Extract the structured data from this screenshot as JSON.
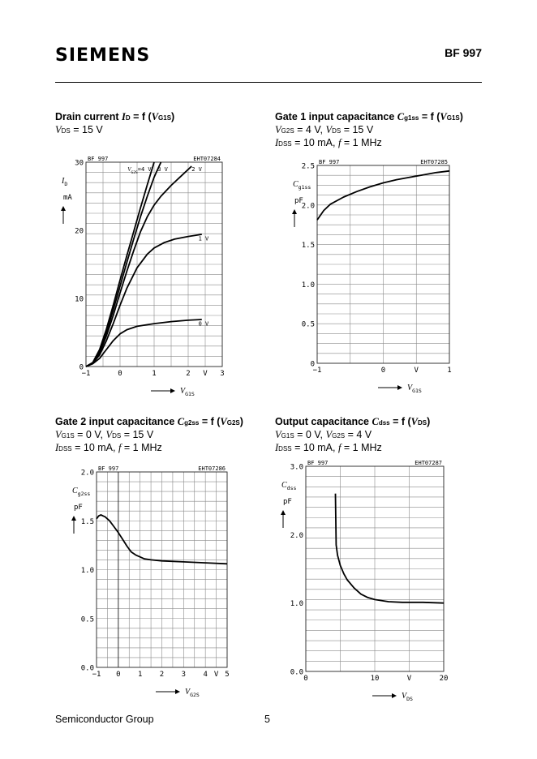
{
  "header": {
    "brand": "SIEMENS",
    "part_number": "BF 997"
  },
  "footer": {
    "left": "Semiconductor Group",
    "page": "5"
  },
  "chart_data": [
    {
      "type": "line",
      "caption": {
        "title": "Drain current",
        "sym": "I",
        "sym_sub": "D",
        "eq": " = f (",
        "arg": "V",
        "arg_sub": "G1S",
        "close": ")"
      },
      "conditions": [
        [
          {
            "v": "V",
            "s": "DS"
          },
          " = 15 V"
        ]
      ],
      "tag_left": "BF 997",
      "tag_right": "EHT07284",
      "ylabel": {
        "main": "I",
        "sub": "D",
        "unit": "mA"
      },
      "xlabel": {
        "main": "V",
        "sub": "G1S"
      },
      "xlim": [
        -1,
        3
      ],
      "ylim": [
        0,
        30
      ],
      "xticks": [
        -1,
        0,
        1,
        2,
        3
      ],
      "xtick_labels": [
        "−1",
        "0",
        "1",
        "2",
        "3"
      ],
      "x_unit": "V",
      "yticks": [
        0,
        10,
        20,
        30
      ],
      "ytick_labels": [
        "0",
        "10",
        "20",
        "30"
      ],
      "series": [
        {
          "name": "0 V",
          "x": [
            -1,
            -0.8,
            -0.6,
            -0.4,
            -0.2,
            0,
            0.2,
            0.5,
            1,
            1.5,
            2,
            2.4
          ],
          "y": [
            0,
            0.4,
            1.2,
            2.5,
            3.8,
            4.8,
            5.4,
            5.9,
            6.3,
            6.6,
            6.8,
            6.9
          ]
        },
        {
          "name": "1 V",
          "x": [
            -1,
            -0.8,
            -0.6,
            -0.4,
            -0.2,
            0,
            0.2,
            0.5,
            0.8,
            1,
            1.3,
            1.6,
            2,
            2.4
          ],
          "y": [
            0,
            0.5,
            1.7,
            3.8,
            6.3,
            9,
            11.5,
            14.5,
            16.5,
            17.4,
            18.2,
            18.7,
            19.1,
            19.4
          ]
        },
        {
          "name": "2 V",
          "x": [
            -1,
            -0.8,
            -0.6,
            -0.4,
            -0.2,
            0,
            0.2,
            0.4,
            0.6,
            0.8,
            1,
            1.2,
            1.5,
            1.8,
            2.1
          ],
          "y": [
            0,
            0.5,
            2,
            4.5,
            7.5,
            10.8,
            14,
            17,
            19.8,
            22,
            23.7,
            25,
            26.6,
            28,
            29.4
          ]
        },
        {
          "name": "3 V",
          "x": [
            -1,
            -0.8,
            -0.6,
            -0.4,
            -0.2,
            0,
            0.2,
            0.4,
            0.6,
            0.8,
            1,
            1.2
          ],
          "y": [
            0,
            0.5,
            2.2,
            5,
            8.3,
            11.8,
            15.3,
            18.7,
            22,
            25,
            27.8,
            30
          ]
        },
        {
          "name": "V_G2S=4 V",
          "x": [
            -1,
            -0.8,
            -0.6,
            -0.4,
            -0.2,
            0,
            0.2,
            0.4,
            0.6,
            0.8,
            1
          ],
          "y": [
            0,
            0.6,
            2.5,
            5.5,
            9,
            12.7,
            16.3,
            19.8,
            23.3,
            26.7,
            30
          ]
        }
      ],
      "annotations": [
        {
          "text": "V",
          "sub": "G2S",
          "after": "=4 V",
          "x": 0.22,
          "y": 28.7
        },
        {
          "text": "3 V",
          "x": 1.1,
          "y": 28.7
        },
        {
          "text": "2 V",
          "x": 2.1,
          "y": 28.7
        },
        {
          "text": "1 V",
          "x": 2.3,
          "y": 18.5
        },
        {
          "text": "0 V",
          "x": 2.3,
          "y": 6.0
        }
      ]
    },
    {
      "type": "line",
      "caption": {
        "title": "Gate 1 input capacitance",
        "sym": "C",
        "sym_sub": "g1ss",
        "eq": " = f (",
        "arg": "V",
        "arg_sub": "G1S",
        "close": ")"
      },
      "conditions": [
        [
          {
            "v": "V",
            "s": "G2S"
          },
          " = 4 V, ",
          {
            "v": "V",
            "s": "DS"
          },
          " = 15 V"
        ],
        [
          {
            "v": "I",
            "s": "DSS"
          },
          " = 10 mA, ",
          {
            "v": "f",
            "s": ""
          },
          " = 1 MHz"
        ]
      ],
      "tag_left": "BF 997",
      "tag_right": "EHT07285",
      "ylabel": {
        "main": "C",
        "sub": "g1ss",
        "unit": "pF"
      },
      "xlabel": {
        "main": "V",
        "sub": "G1S"
      },
      "xlim": [
        -1,
        1
      ],
      "ylim": [
        0,
        2.5
      ],
      "xticks": [
        -1,
        0,
        1
      ],
      "xtick_labels": [
        "−1",
        "0",
        "1"
      ],
      "x_unit": "V",
      "yticks": [
        0,
        0.5,
        1.0,
        1.5,
        2.0,
        2.5
      ],
      "ytick_labels": [
        "0",
        "0.5",
        "1.0",
        "1.5",
        "2.0",
        "2.5"
      ],
      "series": [
        {
          "name": "",
          "x": [
            -1,
            -0.9,
            -0.8,
            -0.6,
            -0.4,
            -0.2,
            0,
            0.2,
            0.4,
            0.6,
            0.8,
            1
          ],
          "y": [
            1.81,
            1.93,
            2.01,
            2.1,
            2.17,
            2.23,
            2.28,
            2.32,
            2.35,
            2.38,
            2.41,
            2.43
          ]
        }
      ],
      "annotations": []
    },
    {
      "type": "line",
      "caption": {
        "title": "Gate 2 input capacitance",
        "sym": "C",
        "sym_sub": "g2ss",
        "eq": " = f (",
        "arg": "V",
        "arg_sub": "G2S",
        "close": ")"
      },
      "conditions": [
        [
          {
            "v": "V",
            "s": "G1S"
          },
          " = 0 V, ",
          {
            "v": "V",
            "s": "DS"
          },
          " = 15 V"
        ],
        [
          {
            "v": "I",
            "s": "DSS"
          },
          " = 10 mA, ",
          {
            "v": "f",
            "s": ""
          },
          " = 1 MHz"
        ]
      ],
      "tag_left": "BF 997",
      "tag_right": "EHT07286",
      "ylabel": {
        "main": "C",
        "sub": "g2ss",
        "unit": "pF"
      },
      "xlabel": {
        "main": "V",
        "sub": "G2S"
      },
      "xlim": [
        -1,
        5
      ],
      "ylim": [
        0,
        2.0
      ],
      "xticks": [
        -1,
        0,
        1,
        2,
        3,
        4,
        5
      ],
      "xtick_labels": [
        "−1",
        "0",
        "1",
        "2",
        "3",
        "4",
        "5"
      ],
      "x_unit": "V",
      "yticks": [
        0,
        0.5,
        1.0,
        1.5,
        2.0
      ],
      "ytick_labels": [
        "0.0",
        "0.5",
        "1.0",
        "1.5",
        "2.0"
      ],
      "zero_line_x": 0,
      "series": [
        {
          "name": "",
          "x": [
            -1,
            -0.9,
            -0.8,
            -0.6,
            -0.4,
            -0.2,
            0,
            0.2,
            0.4,
            0.6,
            0.8,
            1,
            1.2,
            1.5,
            2,
            3,
            4,
            5
          ],
          "y": [
            1.52,
            1.55,
            1.56,
            1.54,
            1.5,
            1.44,
            1.38,
            1.31,
            1.24,
            1.18,
            1.15,
            1.13,
            1.11,
            1.1,
            1.09,
            1.08,
            1.07,
            1.06
          ]
        }
      ],
      "annotations": []
    },
    {
      "type": "line",
      "caption": {
        "title": "Output capacitance",
        "sym": "C",
        "sym_sub": "dss",
        "eq": " = f (",
        "arg": "V",
        "arg_sub": "DS",
        "close": ")"
      },
      "conditions": [
        [
          {
            "v": "V",
            "s": "G1S"
          },
          " = 0 V, ",
          {
            "v": "V",
            "s": "G2S"
          },
          " = 4 V"
        ],
        [
          {
            "v": "I",
            "s": "DSS"
          },
          " = 10 mA, ",
          {
            "v": "f",
            "s": ""
          },
          " = 1 MHz"
        ]
      ],
      "tag_left": "BF 997",
      "tag_right": "EHT07287",
      "ylabel": {
        "main": "C",
        "sub": "dss",
        "unit": "pF"
      },
      "xlabel": {
        "main": "V",
        "sub": "DS"
      },
      "xlim": [
        0,
        20
      ],
      "ylim": [
        0,
        3.0
      ],
      "xticks": [
        0,
        10,
        20
      ],
      "xtick_labels": [
        "0",
        "10",
        "20"
      ],
      "x_unit": "V",
      "yticks": [
        0,
        1.0,
        2.0,
        3.0
      ],
      "ytick_labels": [
        "0.0",
        "1.0",
        "2.0",
        "3.0"
      ],
      "series": [
        {
          "name": "",
          "x": [
            4.3,
            4.4,
            4.6,
            5,
            5.5,
            6,
            7,
            8,
            9,
            10,
            12,
            14,
            17,
            20
          ],
          "y": [
            2.6,
            1.85,
            1.7,
            1.55,
            1.43,
            1.34,
            1.22,
            1.13,
            1.08,
            1.05,
            1.02,
            1.01,
            1.01,
            1.0
          ]
        }
      ],
      "annotations": []
    }
  ]
}
